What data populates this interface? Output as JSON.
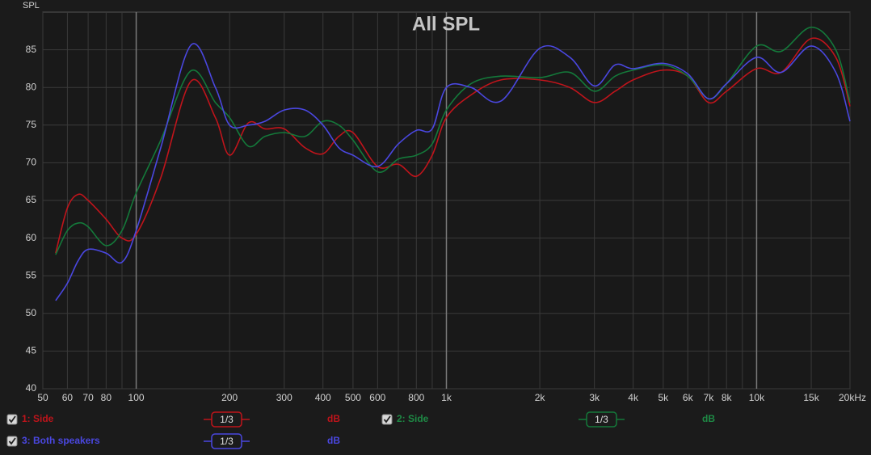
{
  "chart_data": {
    "type": "line",
    "title": "All SPL",
    "ylabel": "SPL",
    "xscale": "log",
    "xlim": [
      50,
      20000
    ],
    "ylim": [
      40,
      90
    ],
    "xticks": [
      50,
      60,
      70,
      80,
      100,
      200,
      300,
      400,
      500,
      600,
      800,
      {
        "value": 1000,
        "label": "1k"
      },
      {
        "value": 2000,
        "label": "2k"
      },
      {
        "value": 3000,
        "label": "3k"
      },
      {
        "value": 4000,
        "label": "4k"
      },
      {
        "value": 5000,
        "label": "5k"
      },
      {
        "value": 6000,
        "label": "6k"
      },
      {
        "value": 7000,
        "label": "7k"
      },
      {
        "value": 8000,
        "label": "8k"
      },
      {
        "value": 10000,
        "label": "10k"
      },
      {
        "value": 15000,
        "label": "15k"
      },
      {
        "value": 20000,
        "label": "20kHz"
      }
    ],
    "x_minor_grid": [
      90,
      700,
      900,
      9000
    ],
    "yticks": [
      40,
      45,
      50,
      55,
      60,
      65,
      70,
      75,
      80,
      85
    ],
    "grid": true,
    "x": [
      55,
      60,
      65,
      70,
      80,
      90,
      100,
      120,
      150,
      180,
      200,
      230,
      260,
      300,
      350,
      400,
      450,
      500,
      600,
      700,
      800,
      900,
      1000,
      1200,
      1500,
      2000,
      2500,
      3000,
      3500,
      4000,
      5000,
      6000,
      7000,
      8000,
      10000,
      12000,
      15000,
      18000,
      20000
    ],
    "series": [
      {
        "name": "1: Side",
        "color": "#c0141b",
        "smoothing": "1/3",
        "unit": "dB",
        "values": [
          58,
          64,
          65.8,
          65,
          62.5,
          60,
          60.5,
          68,
          80.8,
          76,
          71,
          75.3,
          74.5,
          74.5,
          72,
          71.2,
          73.5,
          74,
          69.5,
          69.8,
          68.2,
          71,
          76,
          79,
          81,
          81,
          80,
          78,
          79.5,
          81,
          82.3,
          81.5,
          78,
          79.5,
          82.5,
          82,
          86.5,
          84,
          77.5
        ]
      },
      {
        "name": "2: Side",
        "color": "#14793a",
        "smoothing": "1/3",
        "unit": "dB",
        "values": [
          57.8,
          61,
          62,
          61.5,
          59,
          61,
          66,
          73,
          82.2,
          78,
          76,
          72.2,
          73.5,
          74,
          73.5,
          75.5,
          75,
          73,
          68.8,
          70.5,
          71,
          72.5,
          77,
          80.5,
          81.5,
          81.3,
          82,
          79.5,
          81.5,
          82.3,
          83,
          81.5,
          78.5,
          80.5,
          85.5,
          84.8,
          88,
          85,
          78
        ]
      },
      {
        "name": "3: Both speakers",
        "color": "#4a47e0",
        "smoothing": "1/3",
        "unit": "dB",
        "values": [
          51.7,
          54,
          57,
          58.5,
          58,
          56.8,
          61,
          72,
          85.6,
          80,
          75,
          75,
          75.5,
          77,
          77,
          75,
          72,
          71,
          69.5,
          72.5,
          74.3,
          74.5,
          80,
          80,
          78.2,
          85.2,
          84,
          80.2,
          83,
          82.5,
          83.2,
          81.8,
          78.5,
          80.5,
          84,
          82,
          85.5,
          82,
          75.5
        ]
      }
    ]
  }
}
